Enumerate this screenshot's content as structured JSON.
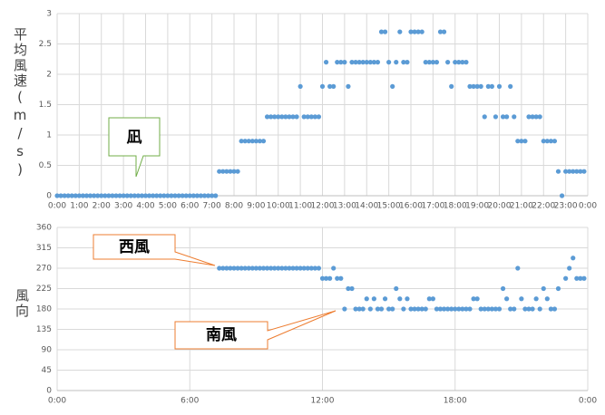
{
  "chart_data": [
    {
      "type": "scatter",
      "ylabel": "平均風速(m/s)",
      "annotation": "凪",
      "color": "#5b9bd5",
      "grid": true,
      "xlim": [
        0,
        1440
      ],
      "ylim": [
        0,
        3
      ],
      "xticks": [
        {
          "value": 0,
          "label": "0:00"
        },
        {
          "value": 60,
          "label": "1:00"
        },
        {
          "value": 120,
          "label": "2:00"
        },
        {
          "value": 180,
          "label": "3:00"
        },
        {
          "value": 240,
          "label": "4:00"
        },
        {
          "value": 300,
          "label": "5:00"
        },
        {
          "value": 360,
          "label": "6:00"
        },
        {
          "value": 420,
          "label": "7:00"
        },
        {
          "value": 480,
          "label": "8:00"
        },
        {
          "value": 540,
          "label": "9:00"
        },
        {
          "value": 600,
          "label": "10:00"
        },
        {
          "value": 660,
          "label": "11:00"
        },
        {
          "value": 720,
          "label": "12:00"
        },
        {
          "value": 780,
          "label": "13:00"
        },
        {
          "value": 840,
          "label": "14:00"
        },
        {
          "value": 900,
          "label": "15:00"
        },
        {
          "value": 960,
          "label": "16:00"
        },
        {
          "value": 1020,
          "label": "17:00"
        },
        {
          "value": 1080,
          "label": "18:00"
        },
        {
          "value": 1140,
          "label": "19:00"
        },
        {
          "value": 1200,
          "label": "20:00"
        },
        {
          "value": 1260,
          "label": "21:00"
        },
        {
          "value": 1320,
          "label": "22:00"
        },
        {
          "value": 1380,
          "label": "23:00"
        },
        {
          "value": 1440,
          "label": "0:00"
        }
      ],
      "yticks": [
        0,
        0.5,
        1,
        1.5,
        2,
        2.5,
        3
      ],
      "x": [
        0,
        10,
        20,
        30,
        40,
        50,
        60,
        70,
        80,
        90,
        100,
        110,
        120,
        130,
        140,
        150,
        160,
        170,
        180,
        190,
        200,
        210,
        220,
        230,
        240,
        250,
        260,
        270,
        280,
        290,
        300,
        310,
        320,
        330,
        340,
        350,
        360,
        370,
        380,
        390,
        400,
        410,
        420,
        430,
        440,
        450,
        460,
        470,
        480,
        490,
        500,
        510,
        520,
        530,
        540,
        550,
        560,
        570,
        580,
        590,
        600,
        610,
        620,
        630,
        640,
        650,
        660,
        670,
        680,
        690,
        700,
        710,
        720,
        730,
        740,
        750,
        760,
        770,
        780,
        790,
        800,
        810,
        820,
        830,
        840,
        850,
        860,
        870,
        880,
        890,
        900,
        910,
        920,
        930,
        940,
        950,
        960,
        970,
        980,
        990,
        1000,
        1010,
        1020,
        1030,
        1040,
        1050,
        1060,
        1070,
        1080,
        1090,
        1100,
        1110,
        1120,
        1130,
        1140,
        1150,
        1160,
        1170,
        1180,
        1190,
        1200,
        1210,
        1220,
        1230,
        1240,
        1250,
        1260,
        1270,
        1280,
        1290,
        1300,
        1310,
        1320,
        1330,
        1340,
        1350,
        1360,
        1370,
        1380,
        1390,
        1400,
        1410,
        1420,
        1430
      ],
      "values": [
        0,
        0,
        0,
        0,
        0,
        0,
        0,
        0,
        0,
        0,
        0,
        0,
        0,
        0,
        0,
        0,
        0,
        0,
        0,
        0,
        0,
        0,
        0,
        0,
        0,
        0,
        0,
        0,
        0,
        0,
        0,
        0,
        0,
        0,
        0,
        0,
        0,
        0,
        0,
        0,
        0,
        0,
        0,
        0,
        0.4,
        0.4,
        0.4,
        0.4,
        0.4,
        0.4,
        0.9,
        0.9,
        0.9,
        0.9,
        0.9,
        0.9,
        0.9,
        1.3,
        1.3,
        1.3,
        1.3,
        1.3,
        1.3,
        1.3,
        1.3,
        1.3,
        1.8,
        1.3,
        1.3,
        1.3,
        1.3,
        1.3,
        1.8,
        2.2,
        1.8,
        1.8,
        2.2,
        2.2,
        2.2,
        1.8,
        2.2,
        2.2,
        2.2,
        2.2,
        2.2,
        2.2,
        2.2,
        2.2,
        2.7,
        2.7,
        2.2,
        1.8,
        2.2,
        2.7,
        2.2,
        2.2,
        2.7,
        2.7,
        2.7,
        2.7,
        2.2,
        2.2,
        2.2,
        2.2,
        2.7,
        2.7,
        2.2,
        1.8,
        2.2,
        2.2,
        2.2,
        2.2,
        1.8,
        1.8,
        1.8,
        1.8,
        1.3,
        1.8,
        1.8,
        1.3,
        1.8,
        1.3,
        1.3,
        1.8,
        1.3,
        0.9,
        0.9,
        0.9,
        1.3,
        1.3,
        1.3,
        1.3,
        0.9,
        0.9,
        0.9,
        0.9,
        0.4,
        0,
        0.4,
        0.4,
        0.4,
        0.4,
        0.4,
        0.4
      ]
    },
    {
      "type": "scatter",
      "ylabel": "風向",
      "annotations": [
        "西風",
        "南風"
      ],
      "color": "#5b9bd5",
      "grid": true,
      "xlim": [
        0,
        1440
      ],
      "ylim": [
        0,
        360
      ],
      "xticks": [
        {
          "value": 0,
          "label": "0:00"
        },
        {
          "value": 360,
          "label": "6:00"
        },
        {
          "value": 720,
          "label": "12:00"
        },
        {
          "value": 1080,
          "label": "18:00"
        },
        {
          "value": 1440,
          "label": "0:00"
        }
      ],
      "yticks": [
        0,
        45,
        90,
        135,
        180,
        225,
        270,
        315,
        360
      ],
      "x": [
        0,
        10,
        20,
        30,
        40,
        50,
        60,
        70,
        80,
        90,
        100,
        110,
        120,
        130,
        140,
        150,
        160,
        170,
        180,
        190,
        200,
        210,
        220,
        230,
        240,
        250,
        260,
        270,
        280,
        290,
        300,
        310,
        320,
        330,
        340,
        350,
        360,
        370,
        380,
        390,
        400,
        410,
        420,
        430,
        440,
        450,
        460,
        470,
        480,
        490,
        500,
        510,
        520,
        530,
        540,
        550,
        560,
        570,
        580,
        590,
        600,
        610,
        620,
        630,
        640,
        650,
        660,
        670,
        680,
        690,
        700,
        710,
        720,
        730,
        740,
        750,
        760,
        770,
        780,
        790,
        800,
        810,
        820,
        830,
        840,
        850,
        860,
        870,
        880,
        890,
        900,
        910,
        920,
        930,
        940,
        950,
        960,
        970,
        980,
        990,
        1000,
        1010,
        1020,
        1030,
        1040,
        1050,
        1060,
        1070,
        1080,
        1090,
        1100,
        1110,
        1120,
        1130,
        1140,
        1150,
        1160,
        1170,
        1180,
        1190,
        1200,
        1210,
        1220,
        1230,
        1240,
        1250,
        1260,
        1270,
        1280,
        1290,
        1300,
        1310,
        1320,
        1330,
        1340,
        1350,
        1360,
        1370,
        1380,
        1390,
        1400,
        1410,
        1420,
        1430
      ],
      "values": [
        null,
        null,
        null,
        null,
        null,
        null,
        null,
        null,
        null,
        null,
        null,
        null,
        null,
        null,
        null,
        null,
        null,
        null,
        null,
        null,
        null,
        null,
        null,
        null,
        null,
        null,
        null,
        null,
        null,
        null,
        null,
        null,
        null,
        null,
        null,
        null,
        null,
        null,
        null,
        null,
        null,
        null,
        null,
        null,
        270,
        270,
        270,
        270,
        270,
        270,
        270,
        270,
        270,
        270,
        270,
        270,
        270,
        270,
        270,
        270,
        270,
        270,
        270,
        270,
        270,
        270,
        270,
        270,
        270,
        270,
        270,
        270,
        247.5,
        247.5,
        247.5,
        270,
        247.5,
        247.5,
        180,
        225,
        225,
        180,
        180,
        180,
        202.5,
        180,
        202.5,
        180,
        180,
        202.5,
        180,
        180,
        225,
        202.5,
        180,
        202.5,
        180,
        180,
        180,
        180,
        180,
        202.5,
        202.5,
        180,
        180,
        180,
        180,
        180,
        180,
        180,
        180,
        180,
        180,
        202.5,
        202.5,
        180,
        180,
        180,
        180,
        180,
        180,
        225,
        202.5,
        180,
        180,
        270,
        202.5,
        180,
        180,
        180,
        202.5,
        180,
        225,
        202.5,
        180,
        180,
        225,
        null,
        247.5,
        270,
        292.5,
        247.5,
        247.5,
        247.5
      ]
    }
  ]
}
